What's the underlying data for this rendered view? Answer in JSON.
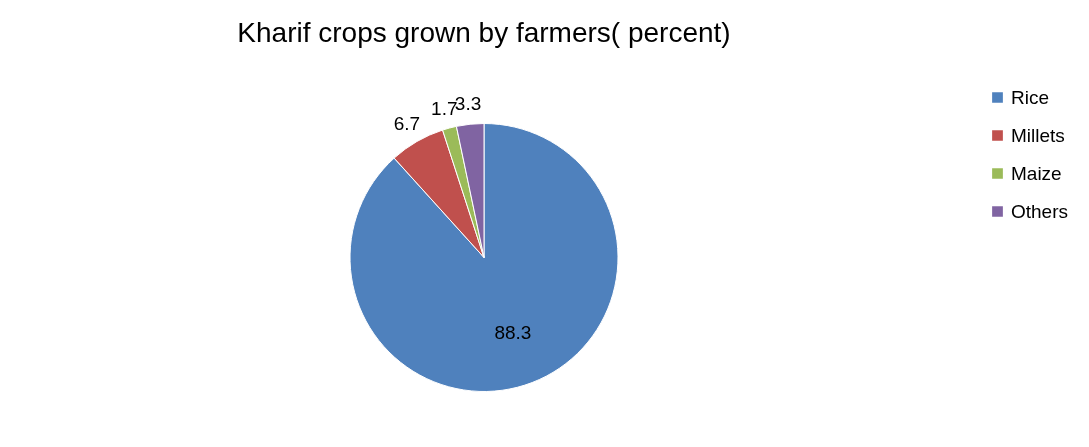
{
  "chart_data": {
    "type": "pie",
    "title": "Kharif crops grown by farmers( percent)",
    "categories": [
      "Rice",
      "Millets",
      "Maize",
      "Others"
    ],
    "values": [
      88.3,
      6.7,
      1.7,
      3.3
    ],
    "colors": [
      "#4f81bd",
      "#c0504d",
      "#9bbb59",
      "#8064a2"
    ],
    "data_labels": true,
    "legend": "right"
  }
}
